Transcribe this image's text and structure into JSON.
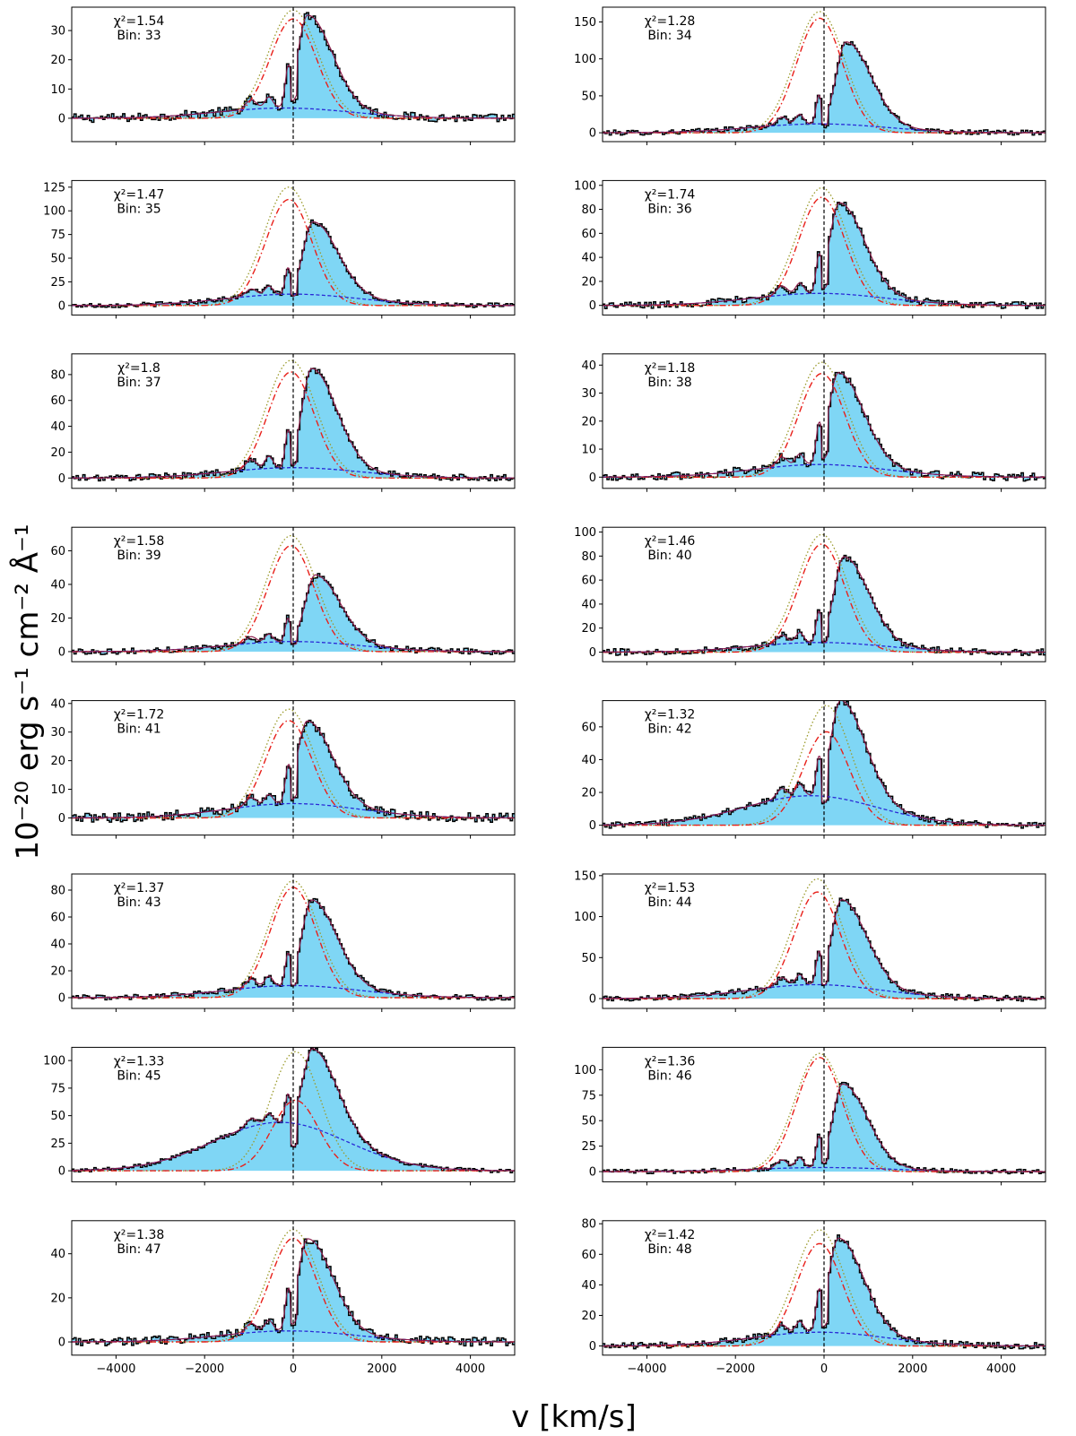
{
  "figure": {
    "ylabel": "10⁻²⁰ erg s⁻¹ cm⁻² Å⁻¹",
    "xlabel": "v [km/s]"
  },
  "colors": {
    "fill": "#7fd6f5",
    "step": "#000000",
    "model": "#8b1a4a",
    "narrow": "#e8201a",
    "broad": "#2a2ad6",
    "total": "#9a9a2a",
    "zero": "#000000"
  },
  "chart_data": [
    {
      "type": "line",
      "bin": "33",
      "chi2": "1.54",
      "chi2_text": "χ²=1.54",
      "bin_text": "Bin: 33",
      "xlim": [
        -5000,
        5000
      ],
      "ylim": [
        -8,
        38
      ],
      "yticks": [
        0,
        10,
        20,
        30
      ],
      "xticks": [
        -4000,
        -2000,
        0,
        2000,
        4000
      ],
      "show_xticklabels": false,
      "line_peak": 37,
      "emis_peak": 32,
      "emis_center": 330,
      "red_peak": 34,
      "red_center": 0,
      "blue_peak": 3.5,
      "blue_center": -200,
      "noise": 1.5
    },
    {
      "type": "line",
      "bin": "34",
      "chi2": "1.28",
      "chi2_text": "χ²=1.28",
      "bin_text": "Bin: 34",
      "xlim": [
        -5000,
        5000
      ],
      "ylim": [
        -12,
        170
      ],
      "yticks": [
        0,
        50,
        100,
        150
      ],
      "xticks": [
        -4000,
        -2000,
        0,
        2000,
        4000
      ],
      "show_xticklabels": false,
      "line_peak": 164,
      "emis_peak": 112,
      "emis_center": 500,
      "red_peak": 155,
      "red_center": -100,
      "blue_peak": 12,
      "blue_center": -100,
      "noise": 3.5
    },
    {
      "type": "line",
      "bin": "35",
      "chi2": "1.47",
      "chi2_text": "χ²=1.47",
      "bin_text": "Bin: 35",
      "xlim": [
        -5000,
        5000
      ],
      "ylim": [
        -10,
        132
      ],
      "yticks": [
        0,
        25,
        50,
        75,
        100,
        125
      ],
      "xticks": [
        -4000,
        -2000,
        0,
        2000,
        4000
      ],
      "show_xticklabels": false,
      "line_peak": 125,
      "emis_peak": 77,
      "emis_center": 450,
      "red_peak": 112,
      "red_center": -100,
      "blue_peak": 12,
      "blue_center": 0,
      "noise": 2.5
    },
    {
      "type": "line",
      "bin": "36",
      "chi2": "1.74",
      "chi2_text": "χ²=1.74",
      "bin_text": "Bin: 36",
      "xlim": [
        -5000,
        5000
      ],
      "ylim": [
        -8,
        104
      ],
      "yticks": [
        0,
        20,
        40,
        60,
        80,
        100
      ],
      "xticks": [
        -4000,
        -2000,
        0,
        2000,
        4000
      ],
      "show_xticklabels": false,
      "line_peak": 98,
      "emis_peak": 76,
      "emis_center": 350,
      "red_peak": 90,
      "red_center": -50,
      "blue_peak": 10,
      "blue_center": -100,
      "noise": 3.0
    },
    {
      "type": "line",
      "bin": "37",
      "chi2": "1.8",
      "chi2_text": "χ²=1.8",
      "bin_text": "Bin: 37",
      "xlim": [
        -5000,
        5000
      ],
      "ylim": [
        -8,
        96
      ],
      "yticks": [
        0,
        20,
        40,
        60,
        80
      ],
      "xticks": [
        -4000,
        -2000,
        0,
        2000,
        4000
      ],
      "show_xticklabels": false,
      "line_peak": 91,
      "emis_peak": 77,
      "emis_center": 420,
      "red_peak": 82,
      "red_center": -50,
      "blue_peak": 8,
      "blue_center": 0,
      "noise": 2.5
    },
    {
      "type": "line",
      "bin": "38",
      "chi2": "1.18",
      "chi2_text": "χ²=1.18",
      "bin_text": "Bin: 38",
      "xlim": [
        -5000,
        5000
      ],
      "ylim": [
        -4,
        44
      ],
      "yticks": [
        0,
        10,
        20,
        30,
        40
      ],
      "xticks": [
        -4000,
        -2000,
        0,
        2000,
        4000
      ],
      "show_xticklabels": false,
      "line_peak": 41,
      "emis_peak": 33,
      "emis_center": 330,
      "red_peak": 37,
      "red_center": -50,
      "blue_peak": 4.5,
      "blue_center": -100,
      "noise": 1.5
    },
    {
      "type": "line",
      "bin": "39",
      "chi2": "1.58",
      "chi2_text": "χ²=1.58",
      "bin_text": "Bin: 39",
      "xlim": [
        -5000,
        5000
      ],
      "ylim": [
        -6,
        74
      ],
      "yticks": [
        0,
        20,
        40,
        60
      ],
      "xticks": [
        -4000,
        -2000,
        0,
        2000,
        4000
      ],
      "show_xticklabels": false,
      "line_peak": 69,
      "emis_peak": 40,
      "emis_center": 500,
      "red_peak": 63,
      "red_center": -50,
      "blue_peak": 6,
      "blue_center": 0,
      "noise": 1.8
    },
    {
      "type": "line",
      "bin": "40",
      "chi2": "1.46",
      "chi2_text": "χ²=1.46",
      "bin_text": "Bin: 40",
      "xlim": [
        -5000,
        5000
      ],
      "ylim": [
        -8,
        104
      ],
      "yticks": [
        0,
        20,
        40,
        60,
        80,
        100
      ],
      "xticks": [
        -4000,
        -2000,
        0,
        2000,
        4000
      ],
      "show_xticklabels": false,
      "line_peak": 98,
      "emis_peak": 72,
      "emis_center": 450,
      "red_peak": 90,
      "red_center": -50,
      "blue_peak": 8,
      "blue_center": -100,
      "noise": 2.8
    },
    {
      "type": "line",
      "bin": "41",
      "chi2": "1.72",
      "chi2_text": "χ²=1.72",
      "bin_text": "Bin: 41",
      "xlim": [
        -5000,
        5000
      ],
      "ylim": [
        -6,
        41
      ],
      "yticks": [
        0,
        10,
        20,
        30,
        40
      ],
      "xticks": [
        -4000,
        -2000,
        0,
        2000,
        4000
      ],
      "show_xticklabels": false,
      "line_peak": 38,
      "emis_peak": 29,
      "emis_center": 320,
      "red_peak": 34,
      "red_center": -100,
      "blue_peak": 5,
      "blue_center": 0,
      "noise": 1.6
    },
    {
      "type": "line",
      "bin": "42",
      "chi2": "1.32",
      "chi2_text": "χ²=1.32",
      "bin_text": "Bin: 42",
      "xlim": [
        -5000,
        5000
      ],
      "ylim": [
        -6,
        76
      ],
      "yticks": [
        0,
        20,
        40,
        60
      ],
      "xticks": [
        -4000,
        -2000,
        0,
        2000,
        4000
      ],
      "show_xticklabels": false,
      "line_peak": 73,
      "emis_peak": 60,
      "emis_center": 380,
      "red_peak": 57,
      "red_center": 50,
      "blue_peak": 18,
      "blue_center": -300,
      "noise": 2.0
    },
    {
      "type": "line",
      "bin": "43",
      "chi2": "1.37",
      "chi2_text": "χ²=1.37",
      "bin_text": "Bin: 43",
      "xlim": [
        -5000,
        5000
      ],
      "ylim": [
        -8,
        92
      ],
      "yticks": [
        0,
        20,
        40,
        60,
        80
      ],
      "xticks": [
        -4000,
        -2000,
        0,
        2000,
        4000
      ],
      "show_xticklabels": false,
      "line_peak": 87,
      "emis_peak": 64,
      "emis_center": 420,
      "red_peak": 82,
      "red_center": 0,
      "blue_peak": 9,
      "blue_center": 0,
      "noise": 2.0
    },
    {
      "type": "line",
      "bin": "44",
      "chi2": "1.53",
      "chi2_text": "χ²=1.53",
      "bin_text": "Bin: 44",
      "xlim": [
        -5000,
        5000
      ],
      "ylim": [
        -12,
        152
      ],
      "yticks": [
        0,
        50,
        100,
        150
      ],
      "xticks": [
        -4000,
        -2000,
        0,
        2000,
        4000
      ],
      "show_xticklabels": false,
      "line_peak": 146,
      "emis_peak": 105,
      "emis_center": 400,
      "red_peak": 130,
      "red_center": -150,
      "blue_peak": 17,
      "blue_center": -200,
      "noise": 3.5
    },
    {
      "type": "line",
      "bin": "45",
      "chi2": "1.33",
      "chi2_text": "χ²=1.33",
      "bin_text": "Bin: 45",
      "xlim": [
        -5000,
        5000
      ],
      "ylim": [
        -10,
        112
      ],
      "yticks": [
        0,
        25,
        50,
        75,
        100
      ],
      "xticks": [
        -4000,
        -2000,
        0,
        2000,
        4000
      ],
      "show_xticklabels": false,
      "line_peak": 108,
      "emis_peak": 72,
      "emis_center": 450,
      "red_peak": 64,
      "red_center": 50,
      "blue_peak": 44,
      "blue_center": -300,
      "noise": 2.0
    },
    {
      "type": "line",
      "bin": "46",
      "chi2": "1.36",
      "chi2_text": "χ²=1.36",
      "bin_text": "Bin: 46",
      "xlim": [
        -5000,
        5000
      ],
      "ylim": [
        -10,
        122
      ],
      "yticks": [
        0,
        25,
        50,
        75,
        100
      ],
      "xticks": [
        -4000,
        -2000,
        0,
        2000,
        4000
      ],
      "show_xticklabels": false,
      "line_peak": 116,
      "emis_peak": 82,
      "emis_center": 420,
      "red_peak": 112,
      "red_center": -100,
      "blue_peak": 4,
      "blue_center": 0,
      "noise": 2.2
    },
    {
      "type": "line",
      "bin": "47",
      "chi2": "1.38",
      "chi2_text": "χ²=1.38",
      "bin_text": "Bin: 47",
      "xlim": [
        -5000,
        5000
      ],
      "ylim": [
        -6,
        55
      ],
      "yticks": [
        0,
        20,
        40
      ],
      "xticks": [
        -4000,
        -2000,
        0,
        2000,
        4000
      ],
      "show_xticklabels": true,
      "line_peak": 51,
      "emis_peak": 42,
      "emis_center": 330,
      "red_peak": 47,
      "red_center": 0,
      "blue_peak": 5,
      "blue_center": -100,
      "noise": 2.0
    },
    {
      "type": "line",
      "bin": "48",
      "chi2": "1.42",
      "chi2_text": "χ²=1.42",
      "bin_text": "Bin: 48",
      "xlim": [
        -5000,
        5000
      ],
      "ylim": [
        -6,
        82
      ],
      "yticks": [
        0,
        20,
        40,
        60,
        80
      ],
      "xticks": [
        -4000,
        -2000,
        0,
        2000,
        4000
      ],
      "show_xticklabels": true,
      "line_peak": 76,
      "emis_peak": 62,
      "emis_center": 330,
      "red_peak": 67,
      "red_center": -100,
      "blue_peak": 9,
      "blue_center": -100,
      "noise": 2.2
    }
  ]
}
